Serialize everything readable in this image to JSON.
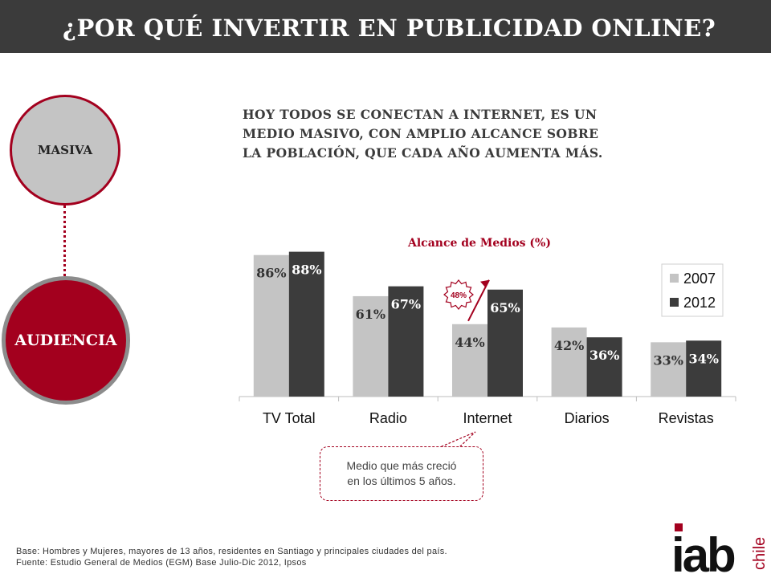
{
  "header": {
    "title": "¿POR QUÉ INVERTIR EN PUBLICIDAD ONLINE?"
  },
  "side": {
    "masiva_label": "MASIVA",
    "audiencia_label": "AUDIENCIA"
  },
  "intro": {
    "line1": "HOY TODOS SE CONECTAN A INTERNET, ES UN",
    "line2": "MEDIO MASIVO, CON AMPLIO ALCANCE SOBRE",
    "line3": "LA POBLACIÓN, QUE CADA AÑO AUMENTA MÁS."
  },
  "chart_data": {
    "type": "bar",
    "title": "Alcance de Medios (%)",
    "categories": [
      "TV Total",
      "Radio",
      "Internet",
      "Diarios",
      "Revistas"
    ],
    "series": [
      {
        "name": "2007",
        "values": [
          86,
          61,
          44,
          42,
          33
        ],
        "labels": [
          "86%",
          "61%",
          "44%",
          "42%",
          "33%"
        ],
        "color": "#c4c4c4"
      },
      {
        "name": "2012",
        "values": [
          88,
          67,
          65,
          36,
          34
        ],
        "labels": [
          "88%",
          "67%",
          "65%",
          "36%",
          "34%"
        ],
        "color": "#3c3c3c"
      }
    ],
    "ylim": [
      0,
      100
    ],
    "legend_position": "top-right",
    "grid": false,
    "annotation": {
      "category": "Internet",
      "label": "48%",
      "color": "#a3001e"
    }
  },
  "callout": {
    "line1": "Medio que más creció",
    "line2": "en los últimos 5 años."
  },
  "footer": {
    "line1": "Base: Hombres y Mujeres, mayores de 13 años, residentes en Santiago y principales ciudades del país.",
    "line2": "Fuente: Estudio General de Medios (EGM) Base Julio-Dic 2012, Ipsos"
  },
  "logo": {
    "main": "iab",
    "sub": "chile",
    "accent_color": "#a3001e"
  }
}
